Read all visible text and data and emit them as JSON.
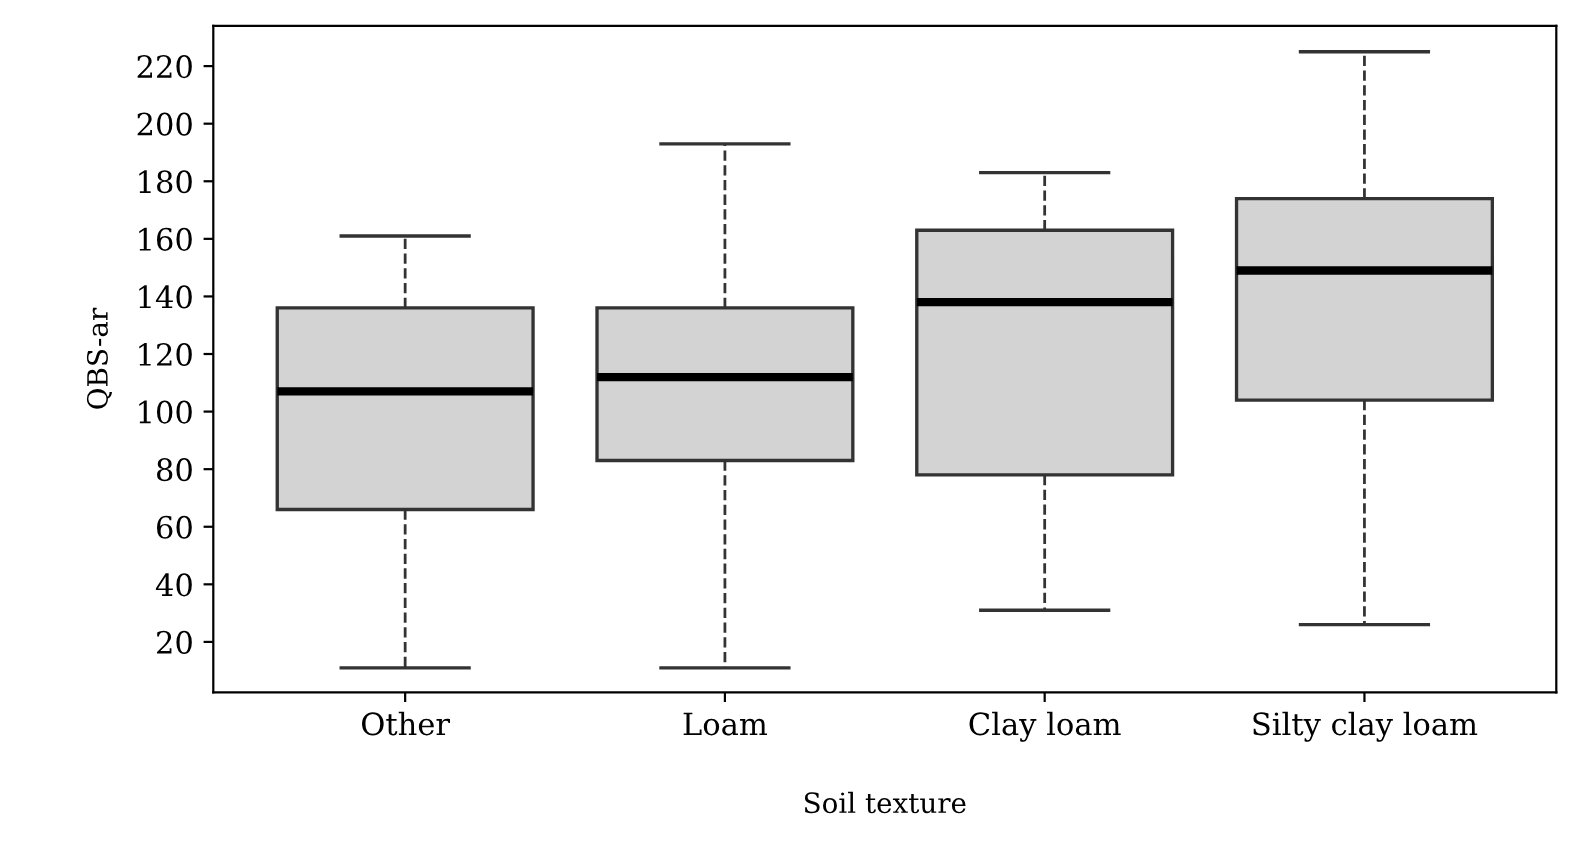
{
  "chart_data": {
    "type": "box",
    "xlabel": "Soil texture",
    "ylabel": "QBS-ar",
    "categories": [
      "Other",
      "Loam",
      "Clay loam",
      "Silty clay loam"
    ],
    "boxes": [
      {
        "low": 11,
        "q1": 66,
        "median": 107,
        "q3": 136,
        "high": 161
      },
      {
        "low": 11,
        "q1": 83,
        "median": 112,
        "q3": 136,
        "high": 193
      },
      {
        "low": 31,
        "q1": 78,
        "median": 138,
        "q3": 163,
        "high": 183
      },
      {
        "low": 26,
        "q1": 104,
        "median": 149,
        "q3": 174,
        "high": 225
      }
    ],
    "color": "#d3d3d3",
    "ylim": [
      2.5,
      234
    ],
    "yticks": [
      20,
      40,
      60,
      80,
      100,
      120,
      140,
      160,
      180,
      200,
      220
    ],
    "grid": false
  }
}
